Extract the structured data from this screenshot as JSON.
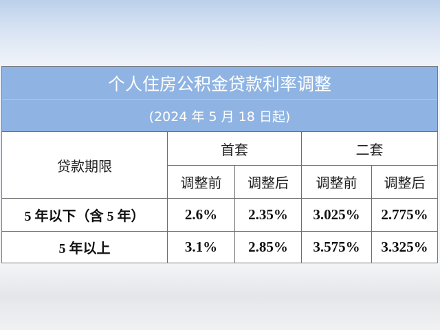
{
  "title": "个人住房公积金贷款利率调整",
  "subtitle": "(2024 年 5 月 18 日起)",
  "header": {
    "term": "贷款期限",
    "first_home": "首套",
    "second_home": "二套",
    "before": "调整前",
    "after": "调整后"
  },
  "rows": [
    {
      "term": "5 年以下（含 5 年）",
      "values": [
        "2.6%",
        "2.35%",
        "3.025%",
        "2.775%"
      ]
    },
    {
      "term": "5 年以上",
      "values": [
        "3.1%",
        "2.85%",
        "3.575%",
        "3.325%"
      ]
    }
  ],
  "colors": {
    "header_blue": "#8fb4e3"
  }
}
